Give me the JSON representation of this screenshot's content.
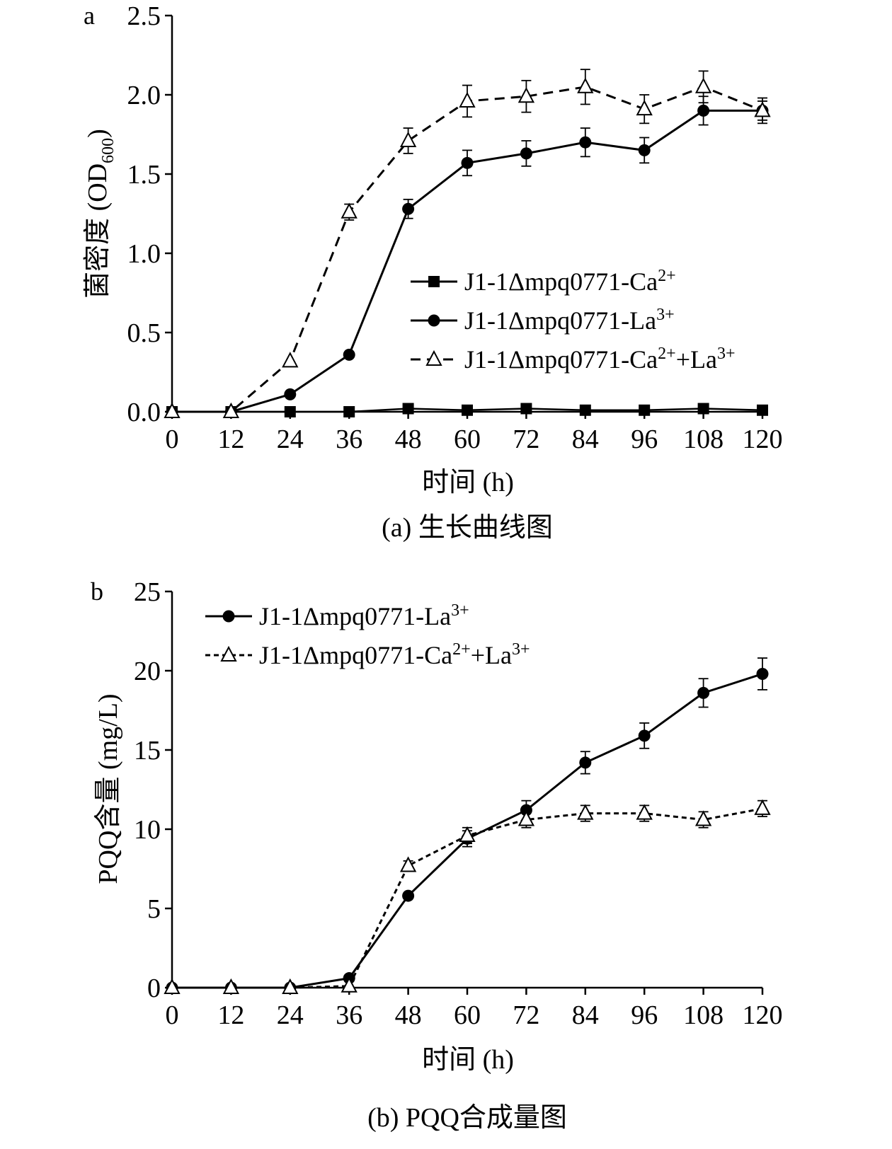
{
  "chart_data": [
    {
      "type": "line",
      "panel_label": "a",
      "caption": "(a) 生长曲线图",
      "xlabel": "时间 (h)",
      "ylabel_main": "菌密度 (OD",
      "ylabel_sub": "600",
      "ylabel_close": ")",
      "x": [
        0,
        12,
        24,
        36,
        48,
        60,
        72,
        84,
        96,
        108,
        120
      ],
      "x_tick_labels": [
        "0",
        "12",
        "24",
        "36",
        "48",
        "60",
        "72",
        "84",
        "96",
        "108",
        "120"
      ],
      "xlim": [
        0,
        120
      ],
      "ylim": [
        0,
        2.5
      ],
      "y_ticks": [
        0,
        0.5,
        1.0,
        1.5,
        2.0,
        2.5
      ],
      "y_tick_labels": [
        "0.0",
        "0.5",
        "1.0",
        "1.5",
        "2.0",
        "2.5"
      ],
      "legend_position": "center-right",
      "series": [
        {
          "name_base": "J1-1Δmpq0771-Ca",
          "name_sup1": "2+",
          "name_mid": "",
          "name_sup2": "",
          "marker": "square",
          "line_style": "solid",
          "values": [
            0,
            0,
            0,
            0,
            0.02,
            0.01,
            0.02,
            0.01,
            0.01,
            0.02,
            0.01
          ],
          "errors": [
            0,
            0,
            0,
            0,
            0,
            0,
            0,
            0,
            0,
            0,
            0
          ]
        },
        {
          "name_base": "J1-1Δmpq0771-La",
          "name_sup1": "3+",
          "name_mid": "",
          "name_sup2": "",
          "marker": "circle",
          "line_style": "solid",
          "values": [
            0,
            0,
            0.11,
            0.36,
            1.28,
            1.57,
            1.63,
            1.7,
            1.65,
            1.9,
            1.9
          ],
          "errors": [
            0,
            0,
            0,
            0,
            0.06,
            0.08,
            0.08,
            0.09,
            0.08,
            0.09,
            0.06
          ]
        },
        {
          "name_base": "J1-1Δmpq0771-Ca",
          "name_sup1": "2+",
          "name_mid": "+La",
          "name_sup2": "3+",
          "marker": "triangle-open",
          "line_style": "dashed",
          "values": [
            0,
            0,
            0.32,
            1.26,
            1.71,
            1.96,
            1.99,
            2.05,
            1.91,
            2.05,
            1.9
          ],
          "errors": [
            0,
            0,
            0,
            0.05,
            0.08,
            0.1,
            0.1,
            0.11,
            0.09,
            0.1,
            0.08
          ]
        }
      ]
    },
    {
      "type": "line",
      "panel_label": "b",
      "caption": "(b) PQQ合成量图",
      "xlabel": "时间 (h)",
      "ylabel_main": "PQQ含量 (mg/L)",
      "ylabel_sub": "",
      "ylabel_close": "",
      "x": [
        0,
        12,
        24,
        36,
        48,
        60,
        72,
        84,
        96,
        108,
        120
      ],
      "x_tick_labels": [
        "0",
        "12",
        "24",
        "36",
        "48",
        "60",
        "72",
        "84",
        "96",
        "108",
        "120"
      ],
      "xlim": [
        0,
        120
      ],
      "ylim": [
        0,
        25
      ],
      "y_ticks": [
        0,
        5,
        10,
        15,
        20,
        25
      ],
      "y_tick_labels": [
        "0",
        "5",
        "10",
        "15",
        "20",
        "25"
      ],
      "legend_position": "top-left",
      "series": [
        {
          "name_base": "J1-1Δmpq0771-La",
          "name_sup1": "3+",
          "name_mid": "",
          "name_sup2": "",
          "marker": "circle",
          "line_style": "solid",
          "values": [
            0,
            0,
            0,
            0.6,
            5.8,
            9.4,
            11.2,
            14.2,
            15.9,
            18.6,
            19.8
          ],
          "errors": [
            0,
            0,
            0,
            0,
            0,
            0.5,
            0.6,
            0.7,
            0.8,
            0.9,
            1.0
          ]
        },
        {
          "name_base": "J1-1Δmpq0771-Ca",
          "name_sup1": "2+",
          "name_mid": "+La",
          "name_sup2": "3+",
          "marker": "triangle-open",
          "line_style": "dotted",
          "values": [
            0,
            0,
            0,
            0.1,
            7.7,
            9.6,
            10.6,
            11.0,
            11.0,
            10.6,
            11.3
          ],
          "errors": [
            0,
            0,
            0,
            0,
            0.3,
            0.5,
            0.5,
            0.5,
            0.5,
            0.5,
            0.5
          ]
        }
      ]
    }
  ]
}
